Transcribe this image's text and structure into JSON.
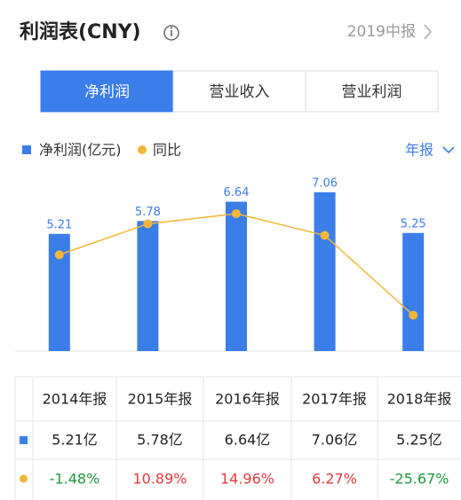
{
  "header": {
    "title": "利润表(CNY)",
    "period": "2019中报"
  },
  "tabs": [
    "净利润",
    "营业收入",
    "营业利润"
  ],
  "period_selector": "年报",
  "chart_data": {
    "type": "bar",
    "categories": [
      "2014年报",
      "2015年报",
      "2016年报",
      "2017年报",
      "2018年报"
    ],
    "series": [
      {
        "name": "净利润(亿元)",
        "color": "#3b7de9",
        "values": [
          5.21,
          5.78,
          6.64,
          7.06,
          5.25
        ],
        "value_labels": [
          "5.21亿",
          "5.78亿",
          "6.64亿",
          "7.06亿",
          "5.25亿"
        ]
      },
      {
        "name": "同比",
        "color": "#f4b63a",
        "axis": "y2",
        "values": [
          -1.48,
          10.89,
          14.96,
          6.27,
          -25.67
        ],
        "value_labels": [
          "-1.48%",
          "10.89%",
          "14.96%",
          "6.27%",
          "-25.67%"
        ]
      }
    ],
    "ylim": [
      0,
      8
    ],
    "y2lim": [
      -40,
      32
    ],
    "grid": false
  }
}
